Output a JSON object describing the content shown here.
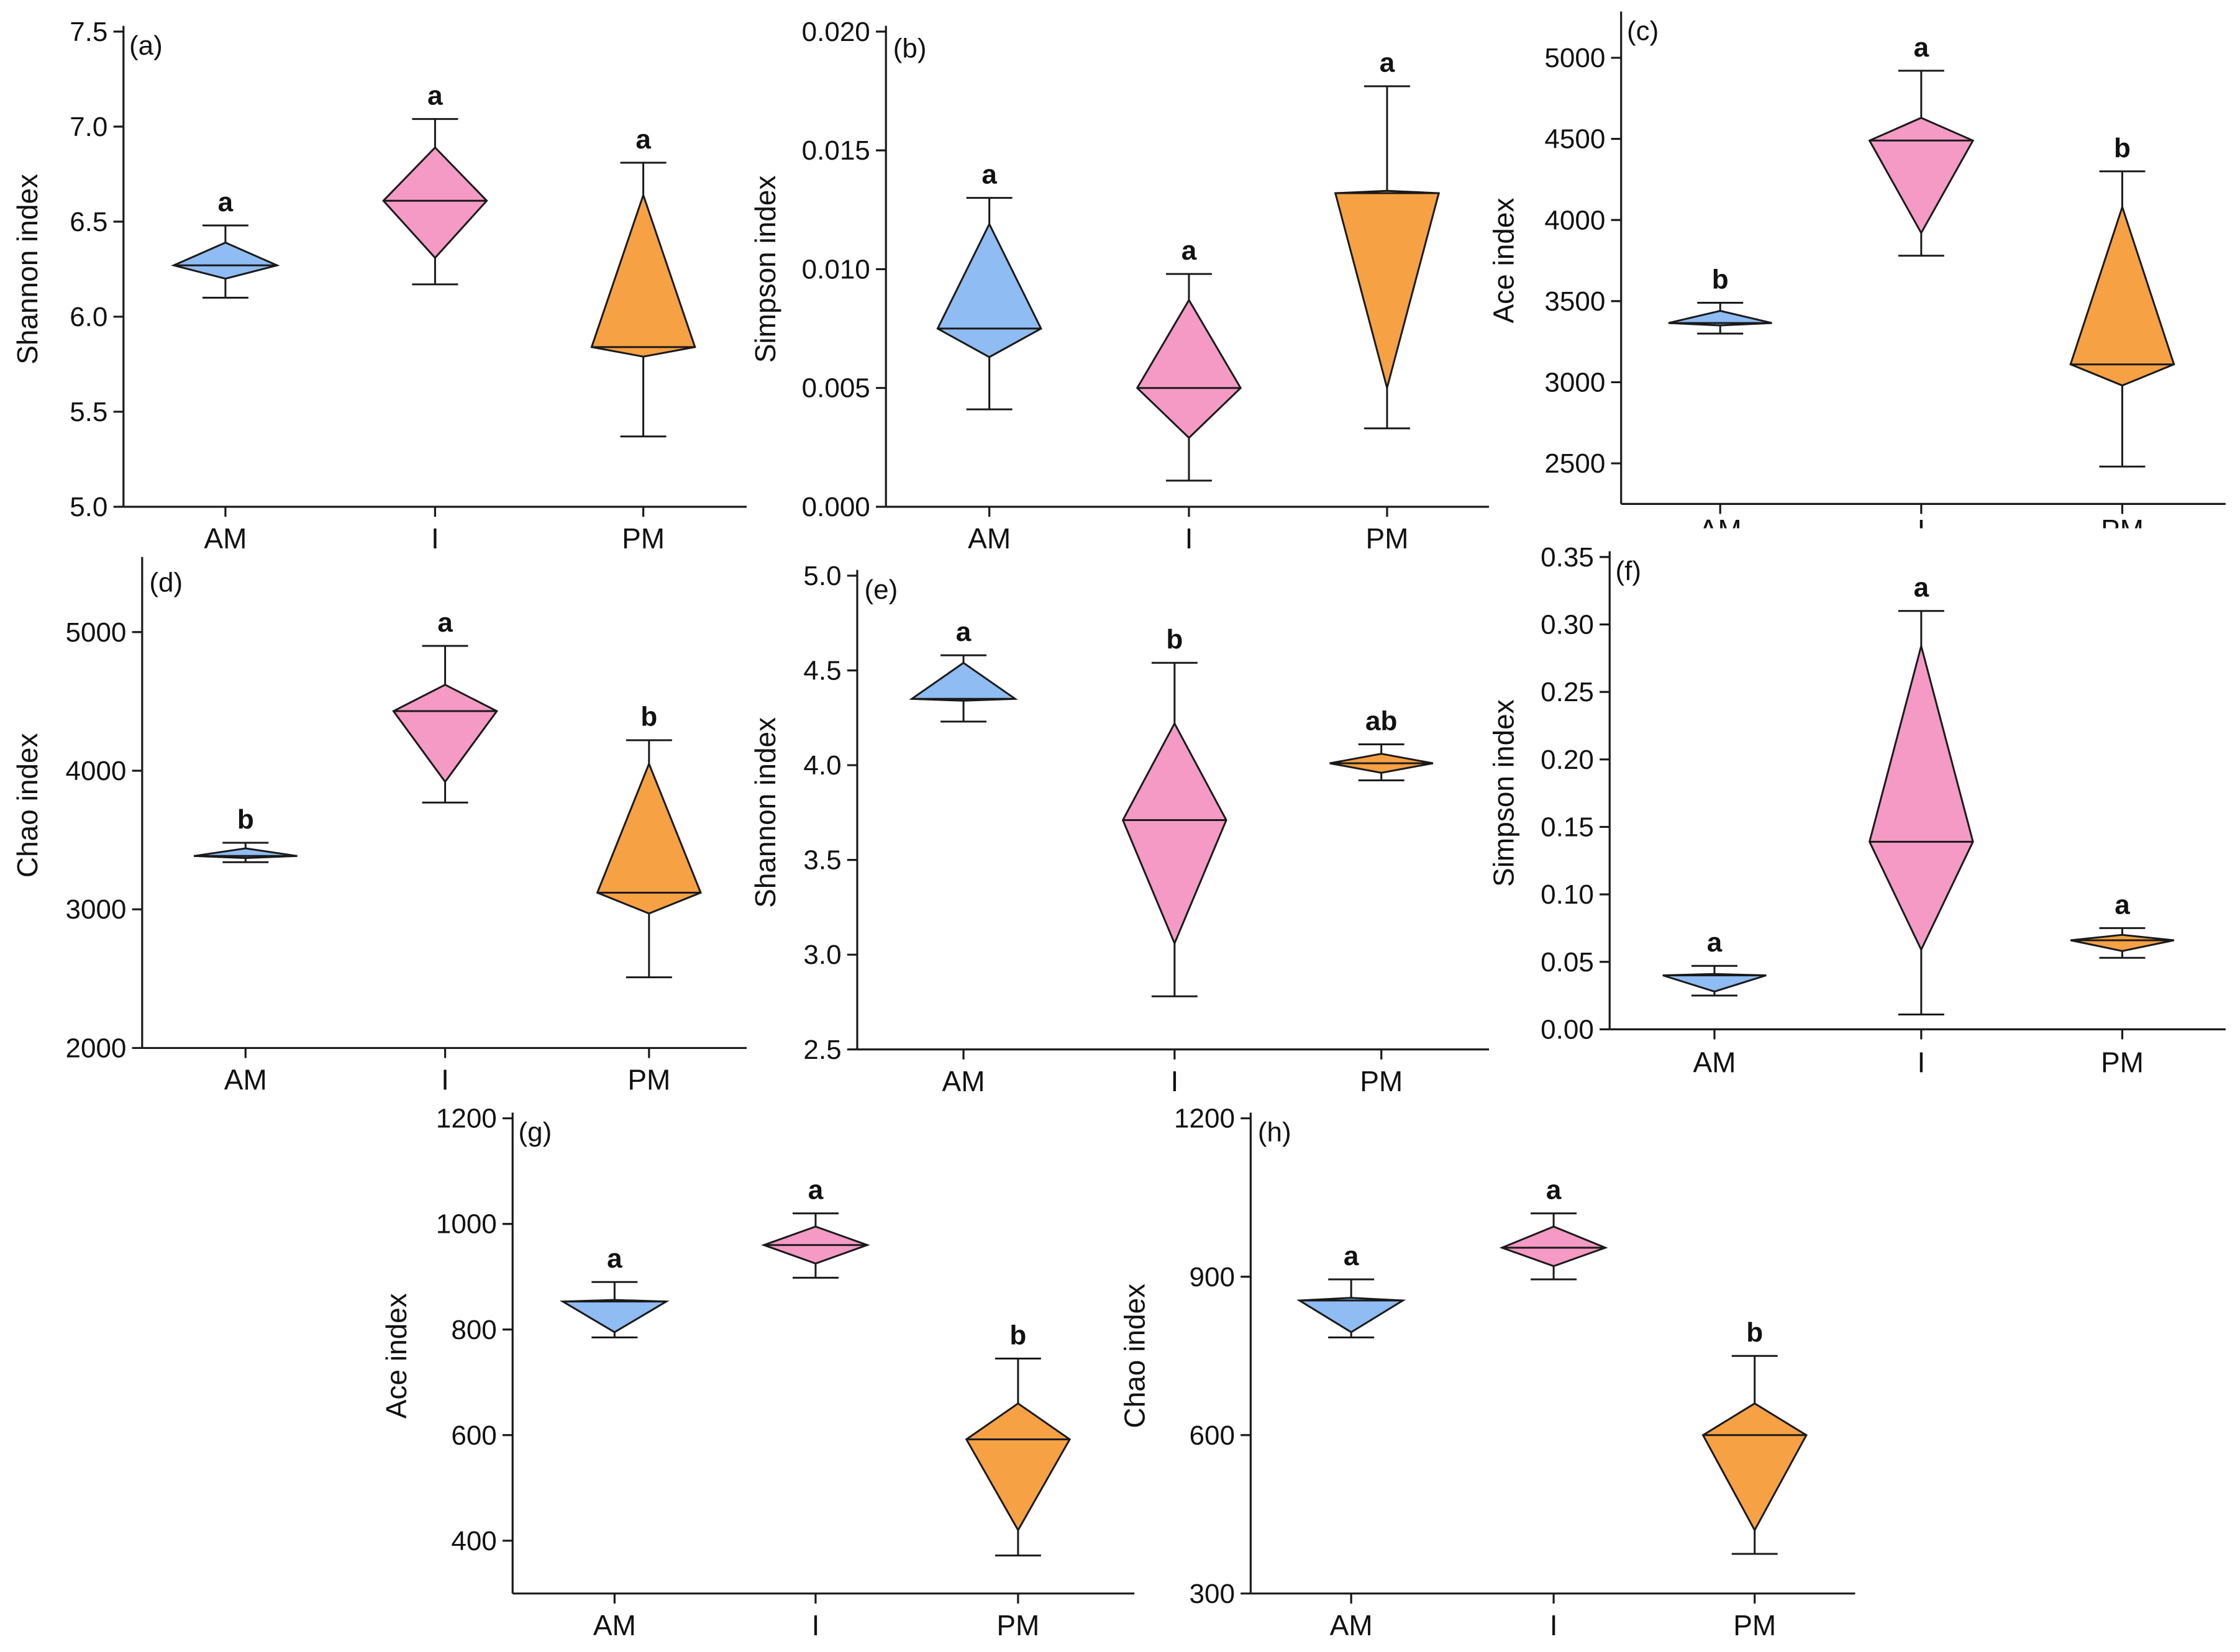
{
  "colors": {
    "AM": "#8fbcf2",
    "I": "#f49ac4",
    "PM": "#f7a145",
    "axis": "#1a1a1a",
    "background": "#ffffff"
  },
  "chart_data": [
    {
      "type": "box",
      "panel": "(a)",
      "ylabel": "Shannon index",
      "categories": [
        "AM",
        "I",
        "PM"
      ],
      "ylim": [
        5.0,
        7.5
      ],
      "yticks": [
        "5.0",
        "5.5",
        "6.0",
        "6.5",
        "7.0",
        "7.5"
      ],
      "groups": [
        {
          "category": "AM",
          "min": 6.1,
          "q1": 6.2,
          "median": 6.27,
          "q3": 6.39,
          "max": 6.48,
          "letter": "a"
        },
        {
          "category": "I",
          "min": 6.17,
          "q1": 6.31,
          "median": 6.61,
          "q3": 6.89,
          "max": 7.04,
          "letter": "a"
        },
        {
          "category": "PM",
          "min": 5.37,
          "q1": 5.79,
          "median": 5.84,
          "q3": 6.64,
          "max": 6.81,
          "letter": "a"
        }
      ]
    },
    {
      "type": "box",
      "panel": "(b)",
      "ylabel": "Simpson index",
      "categories": [
        "AM",
        "I",
        "PM"
      ],
      "ylim": [
        0.0,
        0.02
      ],
      "yticks": [
        "0.000",
        "0.005",
        "0.010",
        "0.015",
        "0.020"
      ],
      "groups": [
        {
          "category": "AM",
          "min": 0.0041,
          "q1": 0.0063,
          "median": 0.0075,
          "q3": 0.0119,
          "max": 0.013,
          "letter": "a"
        },
        {
          "category": "I",
          "min": 0.0011,
          "q1": 0.0029,
          "median": 0.005,
          "q3": 0.0087,
          "max": 0.0098,
          "letter": "a"
        },
        {
          "category": "PM",
          "min": 0.0033,
          "q1": 0.005,
          "median": 0.0132,
          "q3": 0.0133,
          "max": 0.0177,
          "letter": "a"
        }
      ]
    },
    {
      "type": "box",
      "panel": "(c)",
      "ylabel": "Ace index",
      "categories": [
        "AM",
        "I",
        "PM"
      ],
      "ylim": [
        2250,
        5250
      ],
      "yticks": [
        "2500",
        "3000",
        "3500",
        "4000",
        "4500",
        "5000"
      ],
      "groups": [
        {
          "category": "AM",
          "min": 3300,
          "q1": 3350,
          "median": 3365,
          "q3": 3440,
          "max": 3490,
          "letter": "b"
        },
        {
          "category": "I",
          "min": 3780,
          "q1": 3920,
          "median": 4490,
          "q3": 4630,
          "max": 4920,
          "letter": "a"
        },
        {
          "category": "PM",
          "min": 2480,
          "q1": 2980,
          "median": 3110,
          "q3": 4080,
          "max": 4300,
          "letter": "b"
        }
      ]
    },
    {
      "type": "box",
      "panel": "(d)",
      "ylabel": "Chao index",
      "categories": [
        "AM",
        "I",
        "PM"
      ],
      "ylim": [
        2000,
        5500
      ],
      "yticks": [
        "2000",
        "3000",
        "4000",
        "5000"
      ],
      "groups": [
        {
          "category": "AM",
          "min": 3340,
          "q1": 3370,
          "median": 3385,
          "q3": 3440,
          "max": 3480,
          "letter": "b"
        },
        {
          "category": "I",
          "min": 3770,
          "q1": 3920,
          "median": 4430,
          "q3": 4620,
          "max": 4900,
          "letter": "a"
        },
        {
          "category": "PM",
          "min": 2510,
          "q1": 2970,
          "median": 3120,
          "q3": 4050,
          "max": 4220,
          "letter": "b"
        }
      ]
    },
    {
      "type": "box",
      "panel": "(e)",
      "ylabel": "Shannon index",
      "categories": [
        "AM",
        "I",
        "PM"
      ],
      "ylim": [
        2.5,
        5.0
      ],
      "yticks": [
        "2.5",
        "3.0",
        "3.5",
        "4.0",
        "4.5",
        "5.0"
      ],
      "groups": [
        {
          "category": "AM",
          "min": 4.23,
          "q1": 4.34,
          "median": 4.35,
          "q3": 4.54,
          "max": 4.58,
          "letter": "a"
        },
        {
          "category": "I",
          "min": 2.78,
          "q1": 3.06,
          "median": 3.71,
          "q3": 4.22,
          "max": 4.54,
          "letter": "b"
        },
        {
          "category": "PM",
          "min": 3.92,
          "q1": 3.96,
          "median": 4.01,
          "q3": 4.06,
          "max": 4.11,
          "letter": "ab"
        }
      ]
    },
    {
      "type": "box",
      "panel": "(f)",
      "ylabel": "Simpson index",
      "categories": [
        "AM",
        "I",
        "PM"
      ],
      "ylim": [
        0.0,
        0.35
      ],
      "yticks": [
        "0.00",
        "0.05",
        "0.10",
        "0.15",
        "0.20",
        "0.25",
        "0.30",
        "0.35"
      ],
      "groups": [
        {
          "category": "AM",
          "min": 0.025,
          "q1": 0.028,
          "median": 0.04,
          "q3": 0.041,
          "max": 0.047,
          "letter": "a"
        },
        {
          "category": "I",
          "min": 0.011,
          "q1": 0.059,
          "median": 0.139,
          "q3": 0.284,
          "max": 0.31,
          "letter": "a"
        },
        {
          "category": "PM",
          "min": 0.053,
          "q1": 0.058,
          "median": 0.066,
          "q3": 0.07,
          "max": 0.075,
          "letter": "a"
        }
      ]
    },
    {
      "type": "box",
      "panel": "(g)",
      "ylabel": "Ace index",
      "categories": [
        "AM",
        "I",
        "PM"
      ],
      "ylim": [
        300,
        1200
      ],
      "yticks": [
        "400",
        "600",
        "800",
        "1000",
        "1200"
      ],
      "groups": [
        {
          "category": "AM",
          "min": 785,
          "q1": 795,
          "median": 853,
          "q3": 856,
          "max": 890,
          "letter": "a"
        },
        {
          "category": "I",
          "min": 898,
          "q1": 925,
          "median": 960,
          "q3": 995,
          "max": 1020,
          "letter": "a"
        },
        {
          "category": "PM",
          "min": 372,
          "q1": 420,
          "median": 592,
          "q3": 660,
          "max": 745,
          "letter": "b"
        }
      ]
    },
    {
      "type": "box",
      "panel": "(h)",
      "ylabel": "Chao index",
      "categories": [
        "AM",
        "I",
        "PM"
      ],
      "ylim": [
        300,
        1200
      ],
      "yticks": [
        "300",
        "600",
        "900",
        "1200"
      ],
      "groups": [
        {
          "category": "AM",
          "min": 785,
          "q1": 795,
          "median": 855,
          "q3": 860,
          "max": 895,
          "letter": "a"
        },
        {
          "category": "I",
          "min": 895,
          "q1": 920,
          "median": 955,
          "q3": 995,
          "max": 1020,
          "letter": "a"
        },
        {
          "category": "PM",
          "min": 375,
          "q1": 420,
          "median": 600,
          "q3": 660,
          "max": 750,
          "letter": "b"
        }
      ]
    }
  ]
}
